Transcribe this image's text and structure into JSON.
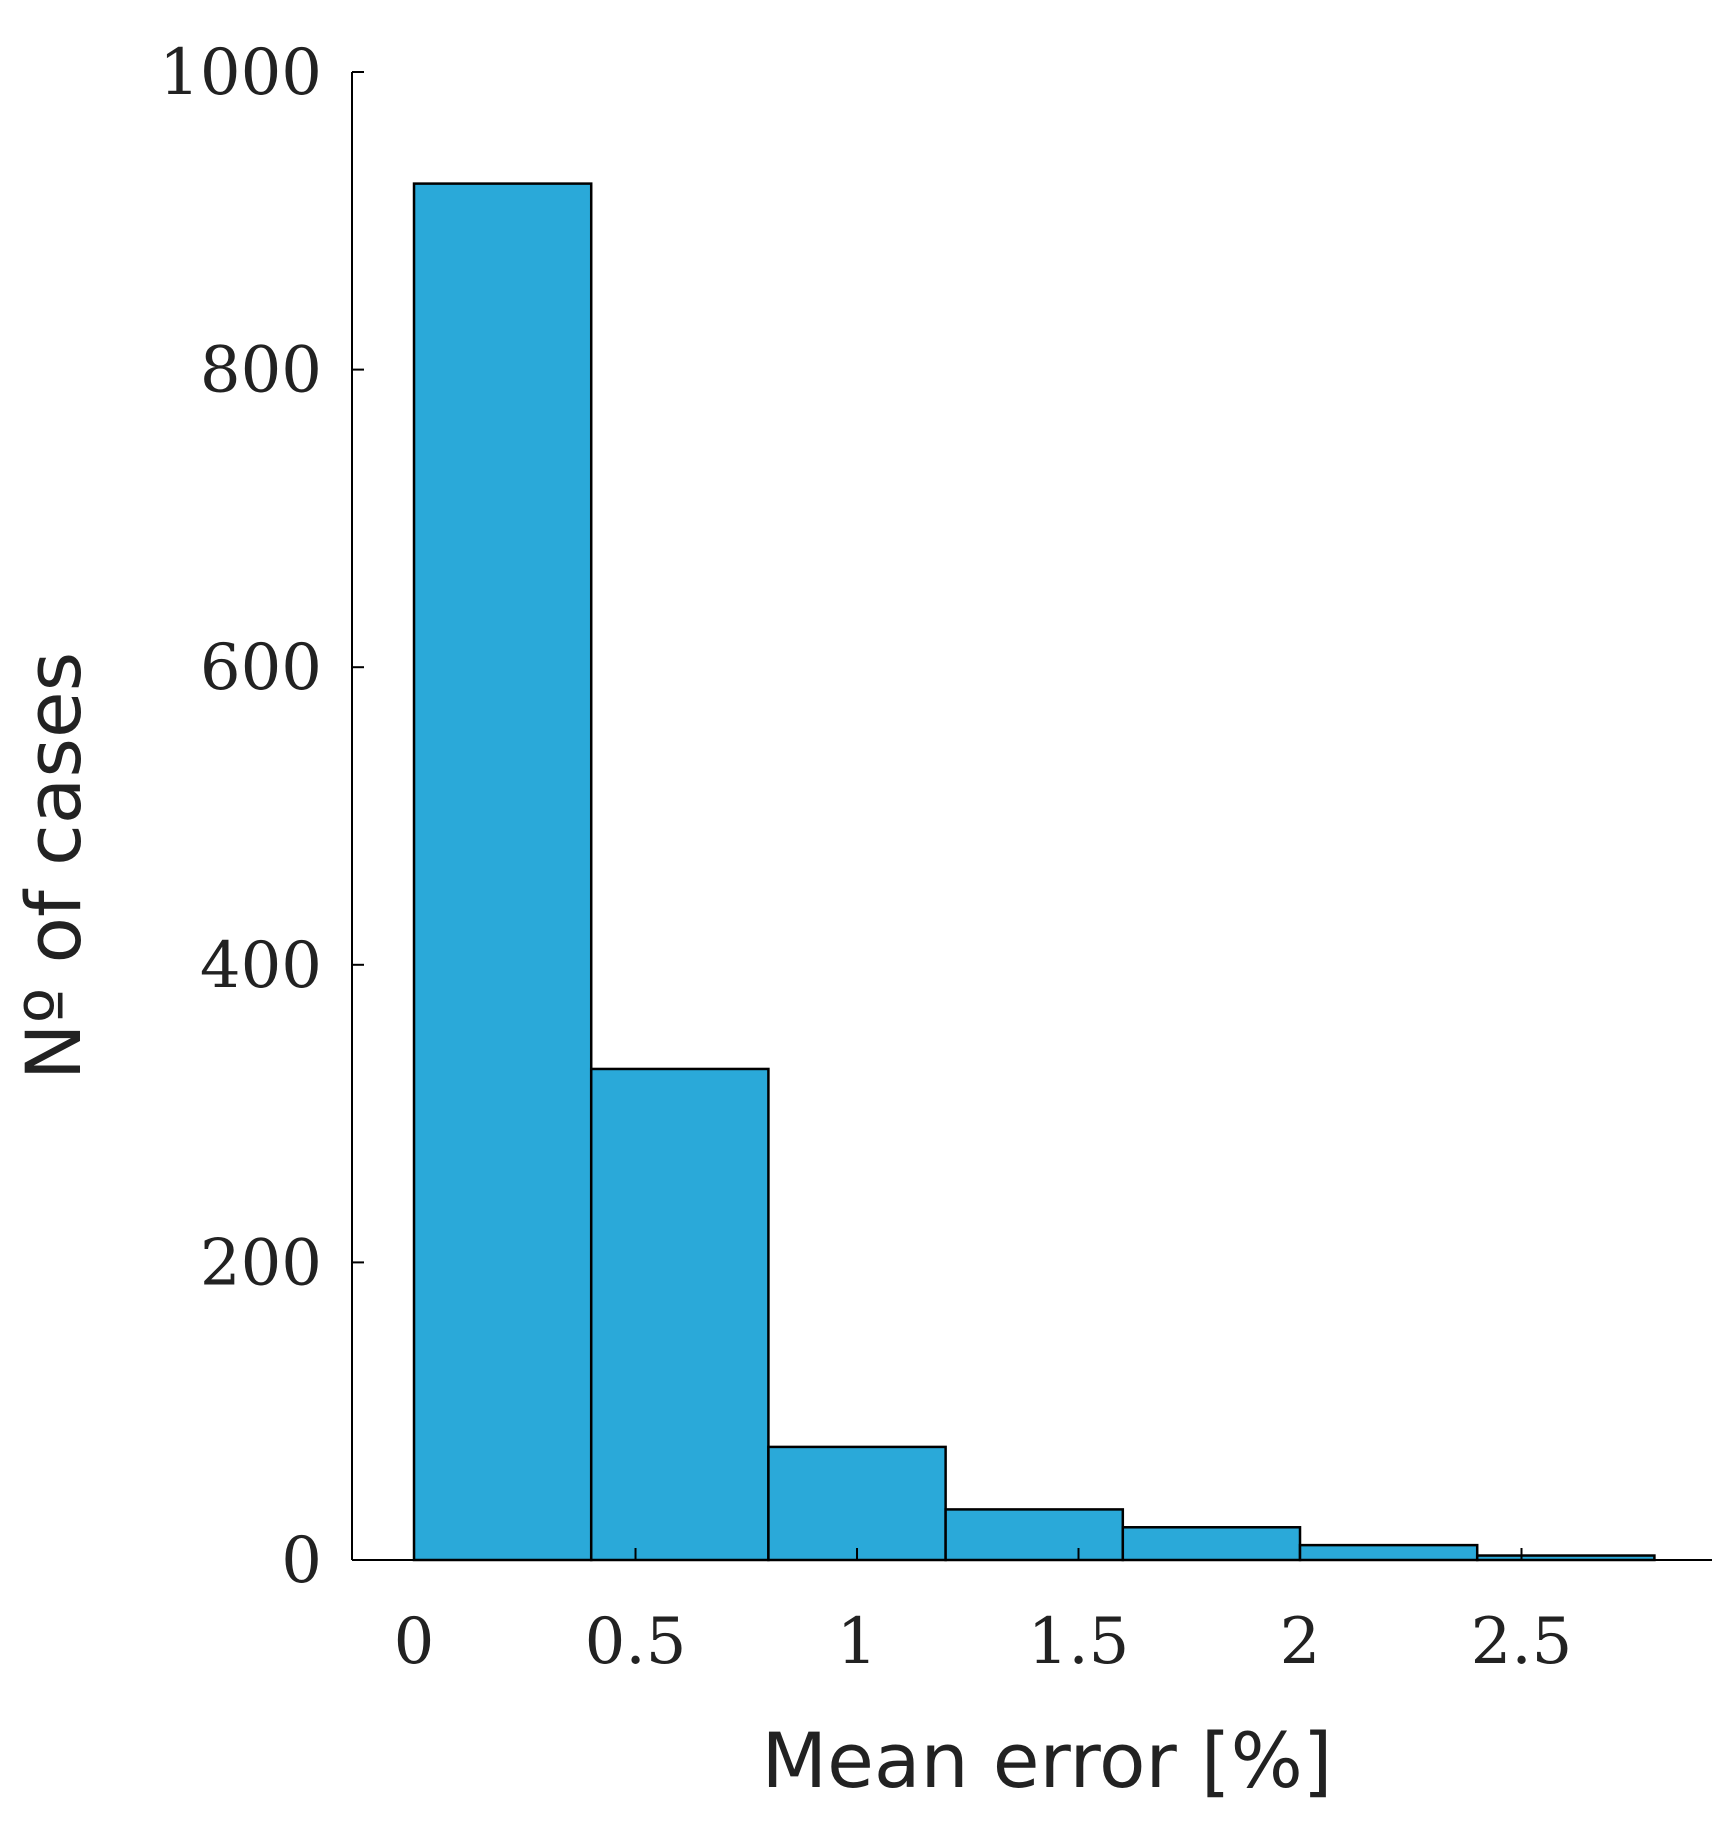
{
  "chart_data": {
    "type": "bar",
    "histogram": true,
    "bin_edges": [
      0,
      0.4,
      0.8,
      1.2,
      1.6,
      2.0,
      2.4,
      2.8
    ],
    "values": [
      925,
      330,
      76,
      34,
      22,
      10,
      3
    ],
    "xlabel": "Mean error [%]",
    "ylabel": "Nº of cases",
    "xlim": [
      -0.14,
      2.93
    ],
    "ylim": [
      0,
      1000
    ],
    "xticks": [
      {
        "value": 0,
        "label": "0"
      },
      {
        "value": 0.5,
        "label": "0.5"
      },
      {
        "value": 1,
        "label": "1"
      },
      {
        "value": 1.5,
        "label": "1.5"
      },
      {
        "value": 2,
        "label": "2"
      },
      {
        "value": 2.5,
        "label": "2.5"
      }
    ],
    "yticks": [
      {
        "value": 0,
        "label": "0"
      },
      {
        "value": 200,
        "label": "200"
      },
      {
        "value": 400,
        "label": "400"
      },
      {
        "value": 600,
        "label": "600"
      },
      {
        "value": 800,
        "label": "800"
      },
      {
        "value": 1000,
        "label": "1000"
      }
    ],
    "bar_color": "#2aa9d9",
    "edge_color": "#000000",
    "grid": false
  }
}
